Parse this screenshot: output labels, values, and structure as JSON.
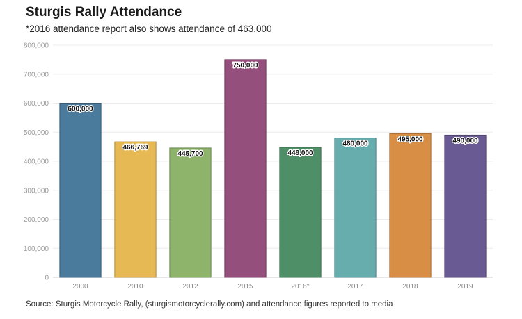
{
  "chart_data": {
    "type": "bar",
    "title": "Sturgis Rally Attendance",
    "subtitle": "*2016 attendance report also shows attendance of 463,000",
    "source": "Source: Sturgis Motorcycle Rally, (sturgismotorcyclerally.com) and attendance figures reported to media",
    "categories": [
      "2000",
      "2010",
      "2012",
      "2015",
      "2016*",
      "2017",
      "2018",
      "2019"
    ],
    "values": [
      600000,
      466769,
      445700,
      750000,
      448000,
      480000,
      495000,
      490000
    ],
    "value_labels": [
      "600,000",
      "466,769",
      "445,700",
      "750,000",
      "448,000",
      "480,000",
      "495,000",
      "490,000"
    ],
    "colors": [
      "#4a7a9c",
      "#e6b954",
      "#8db46a",
      "#954f7c",
      "#4f8f67",
      "#68adae",
      "#d88e45",
      "#6a5a93"
    ],
    "y_ticks": [
      0,
      100000,
      200000,
      300000,
      400000,
      500000,
      600000,
      700000,
      800000
    ],
    "y_tick_labels": [
      "0",
      "100,000",
      "200,000",
      "300,000",
      "400,000",
      "500,000",
      "600,000",
      "700,000",
      "800,000"
    ],
    "ylim": [
      0,
      800000
    ],
    "xlabel": "",
    "ylabel": "",
    "grid": true,
    "legend": "none"
  }
}
